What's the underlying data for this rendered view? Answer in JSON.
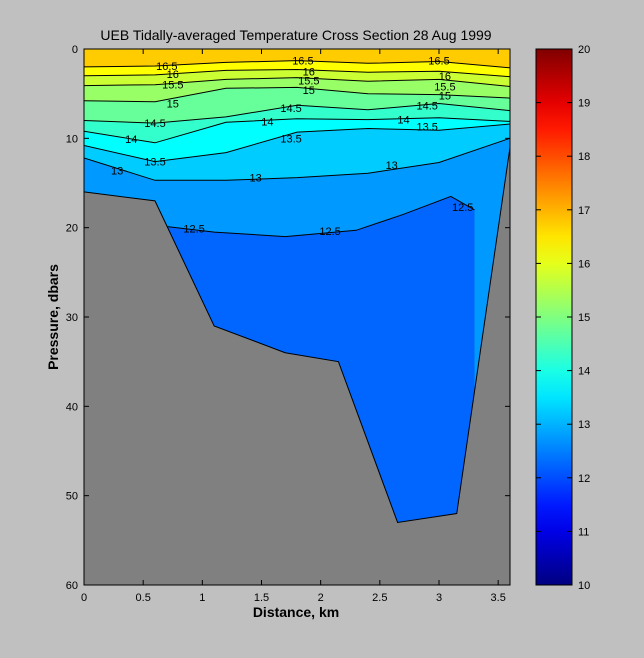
{
  "chart_data": {
    "type": "heatmap",
    "subtype": "filled-contour",
    "title": "UEB  Tidally-averaged Temperature Cross Section  28 Aug 1999",
    "xlabel": "Distance, km",
    "ylabel": "Pressure, dbars",
    "xlim": [
      0,
      3.6
    ],
    "ylim": [
      0,
      60
    ],
    "y_reversed": true,
    "x_ticks": [
      "0",
      "0.5",
      "1",
      "1.5",
      "2",
      "2.5",
      "3",
      "3.5"
    ],
    "y_ticks": [
      "0",
      "10",
      "20",
      "30",
      "40",
      "50",
      "60"
    ],
    "colorbar": {
      "min": 10,
      "max": 20,
      "ticks": [
        "10",
        "11",
        "12",
        "13",
        "14",
        "15",
        "16",
        "17",
        "18",
        "19",
        "20"
      ],
      "colormap": "jet"
    },
    "contour_levels": [
      12.5,
      13,
      13.5,
      14,
      14.5,
      15,
      15.5,
      16,
      16.5
    ],
    "contour_depths": [
      {
        "level": 16.5,
        "x": [
          0,
          0.6,
          1.2,
          1.8,
          2.4,
          3.0,
          3.6
        ],
        "y": [
          2.0,
          1.9,
          1.5,
          1.3,
          1.6,
          1.4,
          2.1
        ]
      },
      {
        "level": 16,
        "x": [
          0,
          0.6,
          1.2,
          1.8,
          2.4,
          3.0,
          3.6
        ],
        "y": [
          3.0,
          2.9,
          2.4,
          2.3,
          2.6,
          2.5,
          3.1
        ]
      },
      {
        "level": 15.5,
        "x": [
          0,
          0.6,
          1.2,
          1.8,
          2.4,
          3.0,
          3.6
        ],
        "y": [
          4.1,
          4.0,
          3.4,
          3.2,
          3.6,
          3.4,
          4.2
        ]
      },
      {
        "level": 15,
        "x": [
          0,
          0.6,
          1.2,
          1.8,
          2.4,
          3.0,
          3.6
        ],
        "y": [
          5.8,
          5.9,
          4.4,
          4.3,
          5.0,
          5.1,
          5.5
        ]
      },
      {
        "level": 14.5,
        "x": [
          0,
          0.6,
          1.2,
          1.8,
          2.4,
          3.0,
          3.6
        ],
        "y": [
          8.0,
          8.3,
          7.6,
          6.3,
          6.8,
          6.1,
          6.9
        ]
      },
      {
        "level": 14,
        "x": [
          0,
          0.6,
          1.2,
          1.8,
          2.4,
          3.0,
          3.6
        ],
        "y": [
          9.2,
          10.5,
          8.2,
          7.8,
          7.9,
          7.7,
          8.1
        ]
      },
      {
        "level": 13.5,
        "x": [
          0,
          0.6,
          1.2,
          1.8,
          2.4,
          3.0,
          3.6
        ],
        "y": [
          10.8,
          12.6,
          11.6,
          9.3,
          8.9,
          9.1,
          8.4
        ]
      },
      {
        "level": 13,
        "x": [
          0,
          0.6,
          1.2,
          1.8,
          2.4,
          3.0,
          3.6
        ],
        "y": [
          12.2,
          14.7,
          14.7,
          14.4,
          13.9,
          12.7,
          10.0
        ]
      },
      {
        "level": 12.5,
        "x": [
          0.65,
          1.1,
          1.7,
          2.3,
          2.7,
          3.1,
          3.3
        ],
        "y": [
          19.8,
          20.5,
          21.0,
          20.3,
          18.5,
          16.5,
          18.0
        ]
      }
    ],
    "bottom_profile": {
      "x": [
        0,
        0.6,
        1.1,
        1.7,
        2.15,
        2.65,
        3.15,
        3.6
      ],
      "y": [
        16,
        17,
        31,
        34,
        35,
        53,
        52,
        11
      ]
    },
    "contour_labels": [
      {
        "text": "16.5",
        "x": 0.7,
        "y": 1.9
      },
      {
        "text": "16.5",
        "x": 1.85,
        "y": 1.3
      },
      {
        "text": "16.5",
        "x": 3.0,
        "y": 1.3
      },
      {
        "text": "16",
        "x": 0.75,
        "y": 2.8
      },
      {
        "text": "16",
        "x": 1.9,
        "y": 2.5
      },
      {
        "text": "16",
        "x": 3.05,
        "y": 3.0
      },
      {
        "text": "15.5",
        "x": 0.75,
        "y": 4.0
      },
      {
        "text": "15.5",
        "x": 1.9,
        "y": 3.5
      },
      {
        "text": "15.5",
        "x": 3.05,
        "y": 4.2
      },
      {
        "text": "15",
        "x": 0.75,
        "y": 6.1
      },
      {
        "text": "15",
        "x": 1.9,
        "y": 4.6
      },
      {
        "text": "15",
        "x": 3.05,
        "y": 5.2
      },
      {
        "text": "14.5",
        "x": 0.6,
        "y": 8.3
      },
      {
        "text": "14.5",
        "x": 1.75,
        "y": 6.6
      },
      {
        "text": "14.5",
        "x": 2.9,
        "y": 6.3
      },
      {
        "text": "14",
        "x": 0.4,
        "y": 10.1
      },
      {
        "text": "14",
        "x": 1.55,
        "y": 8.1
      },
      {
        "text": "14",
        "x": 2.7,
        "y": 7.9
      },
      {
        "text": "13.5",
        "x": 0.6,
        "y": 12.6
      },
      {
        "text": "13.5",
        "x": 1.75,
        "y": 10.0
      },
      {
        "text": "13.5",
        "x": 2.9,
        "y": 8.7
      },
      {
        "text": "13",
        "x": 0.28,
        "y": 13.6
      },
      {
        "text": "13",
        "x": 1.45,
        "y": 14.4
      },
      {
        "text": "13",
        "x": 2.6,
        "y": 13.0
      },
      {
        "text": "12.5",
        "x": 0.93,
        "y": 20.1
      },
      {
        "text": "12.5",
        "x": 2.08,
        "y": 20.4
      },
      {
        "text": "12.5",
        "x": 3.2,
        "y": 17.7
      }
    ]
  }
}
